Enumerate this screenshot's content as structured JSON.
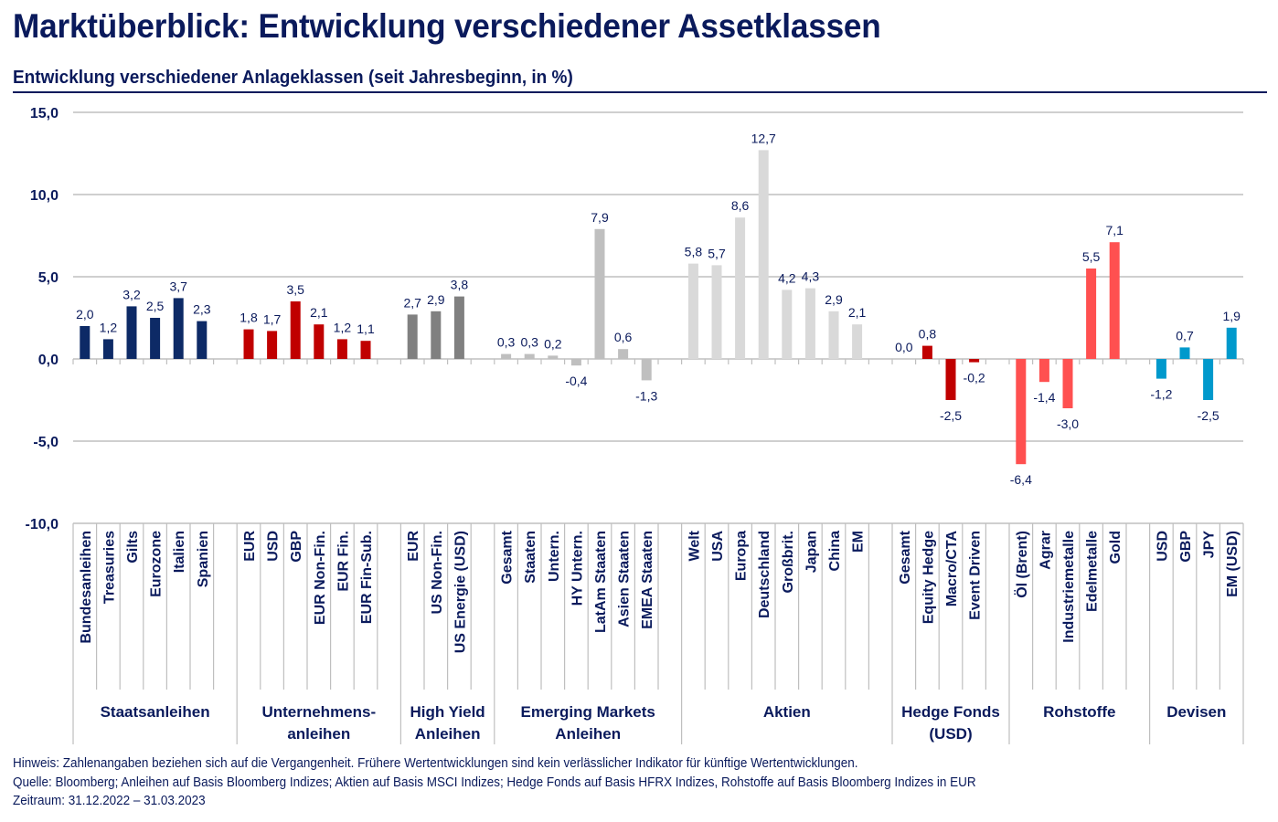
{
  "header": {
    "title": "Marktüberblick: Entwicklung verschiedener Assetklassen",
    "subtitle": "Entwicklung verschiedener Anlageklassen (seit Jahresbeginn, in %)"
  },
  "footer": {
    "note": "Hinweis: Zahlenangaben beziehen sich auf die Vergangenheit. Frühere Wertentwicklungen sind kein verlässlicher Indikator für künftige Wertentwicklungen.",
    "source": "Quelle: Bloomberg; Anleihen auf Basis Bloomberg Indizes; Aktien auf Basis MSCI Indizes; Hedge Fonds auf Basis HFRX Indizes, Rohstoffe auf Basis Bloomberg Indizes in EUR",
    "period": "Zeitraum: 31.12.2022 – 31.03.2023"
  },
  "chart_data": {
    "type": "bar",
    "title": "Entwicklung verschiedener Anlageklassen (seit Jahresbeginn, in %)",
    "xlabel": "",
    "ylabel": "",
    "ylim": [
      -10,
      15
    ],
    "yticks": [
      15,
      10,
      5,
      0,
      -5,
      -10
    ],
    "ytick_labels": [
      "15,0",
      "10,0",
      "5,0",
      "0,0",
      "-5,0",
      "-10,0"
    ],
    "grid": true,
    "legend": "none",
    "decimal_separator": ",",
    "groups": [
      {
        "name": "Staatsanleihen",
        "label_lines": [
          "Staatsanleihen"
        ],
        "color": "#0d2a66",
        "categories": [
          "Bundesanleihen",
          "Treasuries",
          "Gilts",
          "Eurozone",
          "Italien",
          "Spanien"
        ],
        "values": [
          2.0,
          1.2,
          3.2,
          2.5,
          3.7,
          2.3
        ]
      },
      {
        "name": "Unternehmensanleihen",
        "label_lines": [
          "Unternehmens-",
          "anleihen"
        ],
        "color": "#c00000",
        "categories": [
          "EUR",
          "USD",
          "GBP",
          "EUR Non-Fin.",
          "EUR Fin.",
          "EUR Fin-Sub."
        ],
        "values": [
          1.8,
          1.7,
          3.5,
          2.1,
          1.2,
          1.1
        ]
      },
      {
        "name": "High Yield Anleihen",
        "label_lines": [
          "High Yield",
          "Anleihen"
        ],
        "color": "#808080",
        "categories": [
          "EUR",
          "US Non-Fin.",
          "US Energie (USD)"
        ],
        "values": [
          2.7,
          2.9,
          3.8
        ]
      },
      {
        "name": "Emerging Markets Anleihen",
        "label_lines": [
          "Emerging Markets",
          "Anleihen"
        ],
        "color": "#bfbfbf",
        "categories": [
          "Gesamt",
          "Staaten",
          "Untern.",
          "HY Untern.",
          "LatAm Staaten",
          "Asien Staaten",
          "EMEA Staaten"
        ],
        "values": [
          0.3,
          0.3,
          0.2,
          -0.4,
          7.9,
          0.6,
          -1.3
        ]
      },
      {
        "name": "Aktien",
        "label_lines": [
          "Aktien"
        ],
        "color": "#d9d9d9",
        "categories": [
          "Welt",
          "USA",
          "Europa",
          "Deutschland",
          "Großbrit.",
          "Japan",
          "China",
          "EM"
        ],
        "values": [
          5.8,
          5.7,
          8.6,
          12.7,
          4.2,
          4.3,
          2.9,
          2.1
        ]
      },
      {
        "name": "Hedge Fonds (USD)",
        "label_lines": [
          "Hedge Fonds",
          "(USD)"
        ],
        "color": "#c00000",
        "categories": [
          "Gesamt",
          "Equity Hedge",
          "Macro/CTA",
          "Event Driven"
        ],
        "values": [
          0.0,
          0.8,
          -2.5,
          -0.2
        ]
      },
      {
        "name": "Rohstoffe",
        "label_lines": [
          "Rohstoffe"
        ],
        "color": "#ff5050",
        "categories": [
          "Öl (Brent)",
          "Agrar",
          "Industriemetalle",
          "Edelmetalle",
          "Gold"
        ],
        "values": [
          -6.4,
          -1.4,
          -3.0,
          5.5,
          7.1
        ]
      },
      {
        "name": "Devisen",
        "label_lines": [
          "Devisen"
        ],
        "color": "#0099cc",
        "categories": [
          "USD",
          "GBP",
          "JPY",
          "EM (USD)"
        ],
        "values": [
          -1.2,
          0.7,
          -2.5,
          1.9
        ]
      }
    ]
  }
}
